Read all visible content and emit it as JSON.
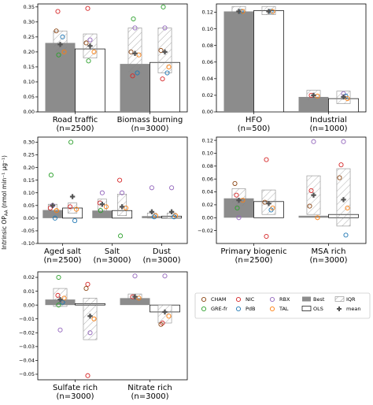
{
  "ylabel": "Intrinsic OP",
  "ylabel_sub": "AA",
  "ylabel_units": " (nmol min⁻¹ µg⁻¹)",
  "palette": {
    "CHAM": "#8b4513",
    "GRE-fr": "#2ca02c",
    "NIC": "#d62728",
    "PdB": "#1f77b4",
    "RBX": "#9467bd",
    "TAL": "#ff7f0e",
    "best": "#8c8c8c",
    "ols": "#ffffff",
    "mean": "#555555"
  },
  "legend": {
    "items": [
      {
        "label": "CHAM",
        "kind": "circle",
        "key": "CHAM"
      },
      {
        "label": "NIC",
        "kind": "circle",
        "key": "NIC"
      },
      {
        "label": "RBX",
        "kind": "circle",
        "key": "RBX"
      },
      {
        "label": "Best",
        "kind": "gray",
        "key": "best"
      },
      {
        "label": "IQR",
        "kind": "hatch",
        "key": "best"
      },
      {
        "label": "GRE-fr",
        "kind": "circle",
        "key": "GRE-fr"
      },
      {
        "label": "PdB",
        "kind": "circle",
        "key": "PdB"
      },
      {
        "label": "TAL",
        "kind": "circle",
        "key": "TAL"
      },
      {
        "label": "OLS",
        "kind": "white",
        "key": "ols"
      },
      {
        "label": "mean",
        "kind": "plus",
        "key": "mean"
      }
    ]
  },
  "chart_data": [
    {
      "type": "bar",
      "ylim": [
        0,
        0.36
      ],
      "yticks": [
        0.0,
        0.05,
        0.1,
        0.15,
        0.2,
        0.25,
        0.3,
        0.35
      ],
      "tick_labels": [
        "0.00",
        "0.05",
        "0.10",
        "0.15",
        "0.20",
        "0.25",
        "0.30",
        "0.35"
      ],
      "categories": [
        {
          "label": "Road traffic",
          "n": "(n=2500)",
          "best": 0.23,
          "ols": 0.21,
          "iqr_best": [
            0.2,
            0.27
          ],
          "iqr_ols": [
            0.18,
            0.26
          ],
          "mean_best": 0.225,
          "mean_ols": 0.22,
          "points": [
            {
              "s": "NIC",
              "side": "best",
              "v": 0.335
            },
            {
              "s": "CHAM",
              "side": "best",
              "v": 0.27
            },
            {
              "s": "PdB",
              "side": "best",
              "v": 0.25
            },
            {
              "s": "TAL",
              "side": "best",
              "v": 0.2
            },
            {
              "s": "GRE-fr",
              "side": "best",
              "v": 0.19
            },
            {
              "s": "NIC",
              "side": "ols",
              "v": 0.345
            },
            {
              "s": "RBX",
              "side": "ols",
              "v": 0.24
            },
            {
              "s": "CHAM",
              "side": "ols",
              "v": 0.23
            },
            {
              "s": "TAL",
              "side": "ols",
              "v": 0.2
            },
            {
              "s": "GRE-fr",
              "side": "ols",
              "v": 0.17
            }
          ]
        },
        {
          "label": "Biomass burning",
          "n": "(n=3000)",
          "best": 0.16,
          "ols": 0.165,
          "iqr_best": [
            0.13,
            0.28
          ],
          "iqr_ols": [
            0.13,
            0.28
          ],
          "mean_best": 0.195,
          "mean_ols": 0.2,
          "points": [
            {
              "s": "GRE-fr",
              "side": "best",
              "v": 0.31
            },
            {
              "s": "RBX",
              "side": "best",
              "v": 0.28
            },
            {
              "s": "CHAM",
              "side": "best",
              "v": 0.2
            },
            {
              "s": "TAL",
              "side": "best",
              "v": 0.19
            },
            {
              "s": "PdB",
              "side": "best",
              "v": 0.13
            },
            {
              "s": "NIC",
              "side": "best",
              "v": 0.12
            },
            {
              "s": "GRE-fr",
              "side": "ols",
              "v": 0.35
            },
            {
              "s": "RBX",
              "side": "ols",
              "v": 0.28
            },
            {
              "s": "CHAM",
              "side": "ols",
              "v": 0.205
            },
            {
              "s": "TAL",
              "side": "ols",
              "v": 0.15
            },
            {
              "s": "PdB",
              "side": "ols",
              "v": 0.13
            },
            {
              "s": "NIC",
              "side": "ols",
              "v": 0.11
            }
          ]
        }
      ]
    },
    {
      "type": "bar",
      "ylim": [
        0,
        0.13
      ],
      "yticks": [
        0.0,
        0.02,
        0.04,
        0.06,
        0.08,
        0.1,
        0.12
      ],
      "tick_labels": [
        "0.00",
        "0.02",
        "0.04",
        "0.06",
        "0.08",
        "0.10",
        "0.12"
      ],
      "categories": [
        {
          "label": "HFO",
          "n": "(n=500)",
          "best": 0.121,
          "ols": 0.122,
          "iqr_best": [
            0.117,
            0.127
          ],
          "iqr_ols": [
            0.117,
            0.127
          ],
          "mean_best": 0.121,
          "mean_ols": 0.121,
          "points": [
            {
              "s": "PdB",
              "side": "best",
              "v": 0.121
            },
            {
              "s": "TAL",
              "side": "best",
              "v": 0.121
            },
            {
              "s": "PdB",
              "side": "ols",
              "v": 0.121
            },
            {
              "s": "TAL",
              "side": "ols",
              "v": 0.121
            }
          ]
        },
        {
          "label": "Industrial",
          "n": "(n=1000)",
          "best": 0.018,
          "ols": 0.016,
          "iqr_best": [
            0.014,
            0.026
          ],
          "iqr_ols": [
            0.01,
            0.025
          ],
          "mean_best": 0.02,
          "mean_ols": 0.018,
          "points": [
            {
              "s": "NIC",
              "side": "best",
              "v": 0.02
            },
            {
              "s": "TAL",
              "side": "best",
              "v": 0.019
            },
            {
              "s": "RBX",
              "side": "ols",
              "v": 0.022
            },
            {
              "s": "PdB",
              "side": "ols",
              "v": 0.019
            },
            {
              "s": "TAL",
              "side": "ols",
              "v": 0.016
            }
          ]
        }
      ]
    },
    {
      "type": "bar",
      "ylim": [
        -0.1,
        0.32
      ],
      "yticks": [
        -0.1,
        -0.05,
        0.0,
        0.05,
        0.1,
        0.15,
        0.2,
        0.25,
        0.3
      ],
      "tick_labels": [
        "-0.10",
        "-0.05",
        "0.00",
        "0.05",
        "0.10",
        "0.15",
        "0.20",
        "0.25",
        "0.30"
      ],
      "categories": [
        {
          "label": "Aged salt",
          "n": "(n=2500)",
          "best": 0.032,
          "ols": 0.04,
          "iqr_best": [
            0.025,
            0.055
          ],
          "iqr_ols": [
            0.02,
            0.06
          ],
          "mean_best": 0.05,
          "mean_ols": 0.085,
          "points": [
            {
              "s": "GRE-fr",
              "side": "best",
              "v": 0.17
            },
            {
              "s": "RBX",
              "side": "best",
              "v": 0.05
            },
            {
              "s": "NIC",
              "side": "best",
              "v": 0.04
            },
            {
              "s": "TAL",
              "side": "best",
              "v": 0.03
            },
            {
              "s": "PdB",
              "side": "best",
              "v": 0.0
            },
            {
              "s": "GRE-fr",
              "side": "ols",
              "v": 0.3
            },
            {
              "s": "NIC",
              "side": "ols",
              "v": 0.045
            },
            {
              "s": "TAL",
              "side": "ols",
              "v": 0.035
            },
            {
              "s": "PdB",
              "side": "ols",
              "v": -0.01
            }
          ]
        },
        {
          "label": "Salt",
          "n": "(n=3000)",
          "best": 0.03,
          "ols": 0.03,
          "iqr_best": [
            0.02,
            0.075
          ],
          "iqr_ols": [
            0.01,
            0.095
          ],
          "mean_best": 0.055,
          "mean_ols": 0.045,
          "points": [
            {
              "s": "RBX",
              "side": "best",
              "v": 0.1
            },
            {
              "s": "NIC",
              "side": "best",
              "v": 0.06
            },
            {
              "s": "TAL",
              "side": "best",
              "v": 0.045
            },
            {
              "s": "GRE-fr",
              "side": "best",
              "v": 0.03
            },
            {
              "s": "NIC",
              "side": "ols",
              "v": 0.15
            },
            {
              "s": "RBX",
              "side": "ols",
              "v": 0.1
            },
            {
              "s": "TAL",
              "side": "ols",
              "v": 0.04
            },
            {
              "s": "GRE-fr",
              "side": "ols",
              "v": -0.07
            }
          ]
        },
        {
          "label": "Dust",
          "n": "(n=3000)",
          "best": 0.008,
          "ols": 0.008,
          "iqr_best": [
            0.0,
            0.02
          ],
          "iqr_ols": [
            0.0,
            0.02
          ],
          "mean_best": 0.025,
          "mean_ols": 0.025,
          "points": [
            {
              "s": "RBX",
              "side": "best",
              "v": 0.12
            },
            {
              "s": "TAL",
              "side": "best",
              "v": 0.01
            },
            {
              "s": "PdB",
              "side": "best",
              "v": 0.005
            },
            {
              "s": "RBX",
              "side": "ols",
              "v": 0.12
            },
            {
              "s": "TAL",
              "side": "ols",
              "v": 0.01
            },
            {
              "s": "PdB",
              "side": "ols",
              "v": 0.005
            }
          ]
        }
      ]
    },
    {
      "type": "bar",
      "ylim": [
        -0.04,
        0.125
      ],
      "yticks": [
        -0.02,
        0.0,
        0.02,
        0.04,
        0.06,
        0.08,
        0.1,
        0.12
      ],
      "tick_labels": [
        "−0.02",
        "0.00",
        "0.02",
        "0.04",
        "0.06",
        "0.08",
        "0.10",
        "0.12"
      ],
      "categories": [
        {
          "label": "Primary biogenic",
          "n": "(n=2500)",
          "best": 0.03,
          "ols": 0.025,
          "iqr_best": [
            0.018,
            0.045
          ],
          "iqr_ols": [
            0.005,
            0.043
          ],
          "mean_best": 0.027,
          "mean_ols": 0.022,
          "points": [
            {
              "s": "CHAM",
              "side": "best",
              "v": 0.053
            },
            {
              "s": "NIC",
              "side": "best",
              "v": 0.035
            },
            {
              "s": "TAL",
              "side": "best",
              "v": 0.027
            },
            {
              "s": "GRE-fr",
              "side": "best",
              "v": 0.015
            },
            {
              "s": "RBX",
              "side": "best",
              "v": 0.0
            },
            {
              "s": "NIC",
              "side": "ols",
              "v": 0.09
            },
            {
              "s": "CHAM",
              "side": "ols",
              "v": 0.024
            },
            {
              "s": "TAL",
              "side": "ols",
              "v": 0.015
            },
            {
              "s": "PdB",
              "side": "ols",
              "v": 0.012
            },
            {
              "s": "NIC",
              "side": "ols",
              "v": -0.029
            }
          ]
        },
        {
          "label": "MSA rich",
          "n": "(n=3000)",
          "best": 0.003,
          "ols": 0.005,
          "iqr_best": [
            0.005,
            0.065
          ],
          "iqr_ols": [
            -0.013,
            0.076
          ],
          "mean_best": 0.035,
          "mean_ols": 0.028,
          "points": [
            {
              "s": "RBX",
              "side": "best",
              "v": 0.118
            },
            {
              "s": "NIC",
              "side": "best",
              "v": 0.042
            },
            {
              "s": "CHAM",
              "side": "best",
              "v": 0.018
            },
            {
              "s": "TAL",
              "side": "best",
              "v": 0.0
            },
            {
              "s": "RBX",
              "side": "ols",
              "v": 0.118
            },
            {
              "s": "NIC",
              "side": "ols",
              "v": 0.082
            },
            {
              "s": "CHAM",
              "side": "ols",
              "v": 0.062
            },
            {
              "s": "TAL",
              "side": "ols",
              "v": 0.015
            },
            {
              "s": "PdB",
              "side": "ols",
              "v": -0.027
            }
          ]
        }
      ]
    },
    {
      "type": "bar",
      "ylim": [
        -0.054,
        0.024
      ],
      "yticks": [
        -0.05,
        -0.04,
        -0.03,
        -0.02,
        -0.01,
        0.0,
        0.01,
        0.02
      ],
      "tick_labels": [
        "−0.05",
        "−0.04",
        "−0.03",
        "−0.02",
        "−0.01",
        "0.00",
        "0.01",
        "0.02"
      ],
      "categories": [
        {
          "label": "Sulfate rich",
          "n": "(n=3000)",
          "best": 0.004,
          "ols": 0.001,
          "iqr_best": [
            -0.001,
            0.012
          ],
          "iqr_ols": [
            -0.025,
            0.005
          ],
          "mean_best": 0.004,
          "mean_ols": -0.008,
          "points": [
            {
              "s": "GRE-fr",
              "side": "best",
              "v": 0.02
            },
            {
              "s": "NIC",
              "side": "best",
              "v": 0.007
            },
            {
              "s": "TAL",
              "side": "best",
              "v": 0.005
            },
            {
              "s": "PdB",
              "side": "best",
              "v": 0.002
            },
            {
              "s": "GRE-fr",
              "side": "best",
              "v": 0.0
            },
            {
              "s": "RBX",
              "side": "best",
              "v": -0.018
            },
            {
              "s": "NIC",
              "side": "ols",
              "v": 0.015
            },
            {
              "s": "CHAM",
              "side": "ols",
              "v": 0.012
            },
            {
              "s": "TAL",
              "side": "ols",
              "v": -0.01
            },
            {
              "s": "RBX",
              "side": "ols",
              "v": -0.02
            },
            {
              "s": "NIC",
              "side": "ols",
              "v": -0.051
            }
          ]
        },
        {
          "label": "Nitrate rich",
          "n": "(n=3000)",
          "best": 0.005,
          "ols": -0.005,
          "iqr_best": [
            0.003,
            0.008
          ],
          "iqr_ols": [
            -0.013,
            0.0
          ],
          "mean_best": 0.006,
          "mean_ols": -0.005,
          "points": [
            {
              "s": "RBX",
              "side": "best",
              "v": 0.021
            },
            {
              "s": "NIC",
              "side": "best",
              "v": 0.006
            },
            {
              "s": "TAL",
              "side": "best",
              "v": 0.005
            },
            {
              "s": "RBX",
              "side": "ols",
              "v": 0.021
            },
            {
              "s": "TAL",
              "side": "ols",
              "v": -0.008
            },
            {
              "s": "NIC",
              "side": "ols",
              "v": -0.013
            },
            {
              "s": "CHAM",
              "side": "ols",
              "v": -0.014
            }
          ]
        }
      ]
    }
  ]
}
